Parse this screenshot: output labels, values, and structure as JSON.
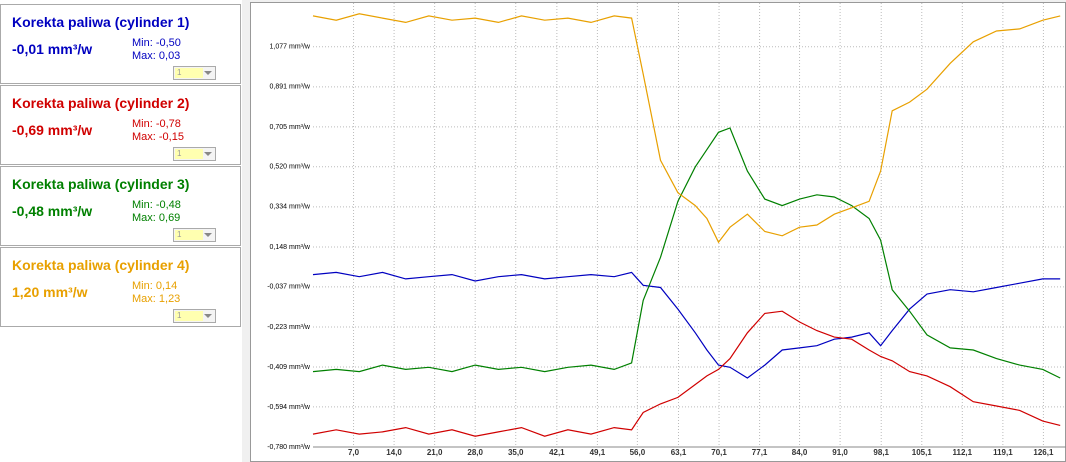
{
  "panels": [
    {
      "value": "-0,01 mm³/w",
      "min": "Min: -0,50",
      "max": "Max: 0,03",
      "selector": "1"
    },
    {
      "value": "-0,69 mm³/w",
      "min": "Min: -0,78",
      "max": "Max: -0,15",
      "selector": "1"
    },
    {
      "value": "-0,48 mm³/w",
      "min": "Min: -0,48",
      "max": "Max: 0,69",
      "selector": "1"
    },
    {
      "value": "1,20 mm³/w",
      "min": "Min: 0,14",
      "max": "Max: 1,23",
      "selector": "1"
    }
  ],
  "chart_data": {
    "type": "line",
    "grid": true,
    "x": [
      0,
      4,
      8,
      12,
      16,
      20,
      24,
      28,
      32,
      36,
      40,
      44,
      48,
      52,
      55,
      57,
      60,
      63,
      66,
      68,
      70,
      72,
      75,
      78,
      81,
      84,
      87,
      90,
      93,
      96,
      98,
      100,
      103,
      106,
      110,
      114,
      118,
      122,
      126,
      129
    ],
    "series": [
      {
        "name": "Korekta paliwa (cylinder 1)",
        "color": "#0000c0",
        "values": [
          0.02,
          0.03,
          0.01,
          0.03,
          0.0,
          0.01,
          0.02,
          -0.01,
          0.01,
          0.02,
          0.0,
          0.01,
          0.02,
          0.01,
          0.03,
          -0.03,
          -0.04,
          -0.14,
          -0.25,
          -0.33,
          -0.4,
          -0.41,
          -0.46,
          -0.4,
          -0.33,
          -0.32,
          -0.31,
          -0.28,
          -0.27,
          -0.25,
          -0.31,
          -0.24,
          -0.14,
          -0.07,
          -0.05,
          -0.06,
          -0.04,
          -0.02,
          0.0,
          0.0
        ]
      },
      {
        "name": "Korekta paliwa (cylinder 2)",
        "color": "#d00000",
        "values": [
          -0.72,
          -0.7,
          -0.72,
          -0.71,
          -0.69,
          -0.72,
          -0.7,
          -0.73,
          -0.71,
          -0.69,
          -0.73,
          -0.7,
          -0.72,
          -0.69,
          -0.7,
          -0.62,
          -0.58,
          -0.55,
          -0.49,
          -0.45,
          -0.42,
          -0.37,
          -0.25,
          -0.16,
          -0.15,
          -0.2,
          -0.24,
          -0.27,
          -0.28,
          -0.33,
          -0.36,
          -0.38,
          -0.43,
          -0.45,
          -0.5,
          -0.57,
          -0.59,
          -0.61,
          -0.66,
          -0.68
        ]
      },
      {
        "name": "Korekta paliwa (cylinder 3)",
        "color": "#008000",
        "values": [
          -0.43,
          -0.42,
          -0.43,
          -0.4,
          -0.42,
          -0.41,
          -0.43,
          -0.4,
          -0.42,
          -0.41,
          -0.43,
          -0.41,
          -0.4,
          -0.42,
          -0.39,
          -0.1,
          0.1,
          0.36,
          0.52,
          0.6,
          0.68,
          0.7,
          0.5,
          0.37,
          0.34,
          0.37,
          0.39,
          0.38,
          0.34,
          0.28,
          0.18,
          -0.05,
          -0.15,
          -0.26,
          -0.32,
          -0.33,
          -0.37,
          -0.4,
          -0.42,
          -0.46
        ]
      },
      {
        "name": "Korekta paliwa (cylinder 4)",
        "color": "#e8a000",
        "values": [
          1.22,
          1.2,
          1.23,
          1.21,
          1.19,
          1.22,
          1.2,
          1.21,
          1.19,
          1.22,
          1.2,
          1.21,
          1.19,
          1.22,
          1.21,
          0.95,
          0.55,
          0.4,
          0.34,
          0.28,
          0.17,
          0.24,
          0.3,
          0.22,
          0.2,
          0.24,
          0.25,
          0.3,
          0.33,
          0.36,
          0.5,
          0.78,
          0.82,
          0.88,
          1.0,
          1.1,
          1.15,
          1.16,
          1.2,
          1.22
        ]
      }
    ],
    "xlim": [
      0,
      130
    ],
    "xticks": [
      {
        "value": 7.0,
        "label": "7,0"
      },
      {
        "value": 14.0,
        "label": "14,0"
      },
      {
        "value": 21.0,
        "label": "21,0"
      },
      {
        "value": 28.0,
        "label": "28,0"
      },
      {
        "value": 35.0,
        "label": "35,0"
      },
      {
        "value": 42.1,
        "label": "42,1"
      },
      {
        "value": 49.1,
        "label": "49,1"
      },
      {
        "value": 56.0,
        "label": "56,0"
      },
      {
        "value": 63.1,
        "label": "63,1"
      },
      {
        "value": 70.1,
        "label": "70,1"
      },
      {
        "value": 77.1,
        "label": "77,1"
      },
      {
        "value": 84.0,
        "label": "84,0"
      },
      {
        "value": 91.0,
        "label": "91,0"
      },
      {
        "value": 98.1,
        "label": "98,1"
      },
      {
        "value": 105.1,
        "label": "105,1"
      },
      {
        "value": 112.1,
        "label": "112,1"
      },
      {
        "value": 119.1,
        "label": "119,1"
      },
      {
        "value": 126.1,
        "label": "126,1"
      }
    ],
    "ylim": [
      -0.78,
      1.28
    ],
    "yticks": [
      {
        "value": -0.78,
        "label": "-0,780 mm³/w"
      },
      {
        "value": -0.594,
        "label": "-0,594 mm³/w"
      },
      {
        "value": -0.409,
        "label": "-0,409 mm³/w"
      },
      {
        "value": -0.223,
        "label": "-0,223 mm³/w"
      },
      {
        "value": -0.037,
        "label": "-0,037 mm³/w"
      },
      {
        "value": 0.148,
        "label": "0,148 mm³/w"
      },
      {
        "value": 0.334,
        "label": "0,334 mm³/w"
      },
      {
        "value": 0.52,
        "label": "0,520 mm³/w"
      },
      {
        "value": 0.705,
        "label": "0,705 mm³/w"
      },
      {
        "value": 0.891,
        "label": "0,891 mm³/w"
      },
      {
        "value": 1.077,
        "label": "1,077 mm³/w"
      }
    ]
  }
}
